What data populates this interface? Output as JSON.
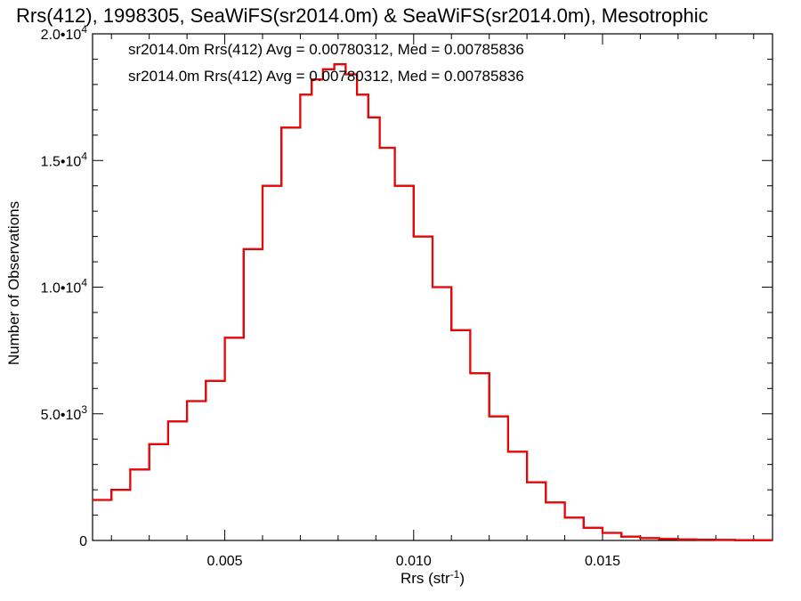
{
  "chart_data": {
    "type": "line",
    "title": "Rrs(412), 1998305, SeaWiFS(sr2014.0m) & SeaWiFS(sr2014.0m), Mesotrophic",
    "xlabel": "Rrs (str",
    "xlabel_sup": "-1",
    "xlabel_end": ")",
    "ylabel": "Number of Observations",
    "xlim": [
      0.0015,
      0.0195
    ],
    "ylim": [
      0,
      20000
    ],
    "x_ticks": [
      {
        "value": 0.005,
        "label": "0.005"
      },
      {
        "value": 0.01,
        "label": "0.010"
      },
      {
        "value": 0.015,
        "label": "0.015"
      }
    ],
    "y_ticks": [
      {
        "value": 0,
        "mant": "0",
        "exp": ""
      },
      {
        "value": 5000,
        "mant": "5.0•10",
        "exp": "3"
      },
      {
        "value": 10000,
        "mant": "1.0•10",
        "exp": "4"
      },
      {
        "value": 15000,
        "mant": "1.5•10",
        "exp": "4"
      },
      {
        "value": 20000,
        "mant": "2.0•10",
        "exp": "4"
      }
    ],
    "annotations": [
      {
        "text": "sr2014.0m Rrs(412) Avg = 0.00780312, Med = 0.00785836",
        "color": "#000000"
      },
      {
        "text": "sr2014.0m Rrs(412) Avg = 0.00780312, Med = 0.00785836",
        "color": "#ff0000"
      }
    ],
    "series": [
      {
        "color": "#000000",
        "x": [
          0.0015,
          0.002,
          0.0025,
          0.003,
          0.0035,
          0.004,
          0.0045,
          0.005,
          0.0055,
          0.006,
          0.0065,
          0.007,
          0.0073,
          0.0076,
          0.0079,
          0.0082,
          0.0085,
          0.0088,
          0.0091,
          0.0095,
          0.01,
          0.0105,
          0.011,
          0.0115,
          0.012,
          0.0125,
          0.013,
          0.0135,
          0.014,
          0.0145,
          0.015,
          0.0155,
          0.016,
          0.0165,
          0.017,
          0.0175,
          0.018,
          0.0185,
          0.019,
          0.0195
        ],
        "values": [
          1600,
          2000,
          2800,
          3800,
          4700,
          5500,
          6300,
          8000,
          11500,
          14000,
          16300,
          17600,
          18200,
          18600,
          18800,
          18400,
          17600,
          16700,
          15500,
          14000,
          12000,
          10000,
          8300,
          6600,
          4900,
          3500,
          2300,
          1500,
          900,
          500,
          300,
          150,
          90,
          60,
          40,
          30,
          20,
          15,
          10,
          10
        ]
      },
      {
        "color": "#ff0000",
        "x": [
          0.0015,
          0.002,
          0.0025,
          0.003,
          0.0035,
          0.004,
          0.0045,
          0.005,
          0.0055,
          0.006,
          0.0065,
          0.007,
          0.0073,
          0.0076,
          0.0079,
          0.0082,
          0.0085,
          0.0088,
          0.0091,
          0.0095,
          0.01,
          0.0105,
          0.011,
          0.0115,
          0.012,
          0.0125,
          0.013,
          0.0135,
          0.014,
          0.0145,
          0.015,
          0.0155,
          0.016,
          0.0165,
          0.017,
          0.0175,
          0.018,
          0.0185,
          0.019,
          0.0195
        ],
        "values": [
          1600,
          2000,
          2800,
          3800,
          4700,
          5500,
          6300,
          8000,
          11500,
          14000,
          16300,
          17600,
          18200,
          18600,
          18800,
          18400,
          17600,
          16700,
          15500,
          14000,
          12000,
          10000,
          8300,
          6600,
          4900,
          3500,
          2300,
          1500,
          900,
          500,
          300,
          150,
          90,
          60,
          40,
          30,
          20,
          15,
          10,
          10
        ]
      }
    ]
  }
}
